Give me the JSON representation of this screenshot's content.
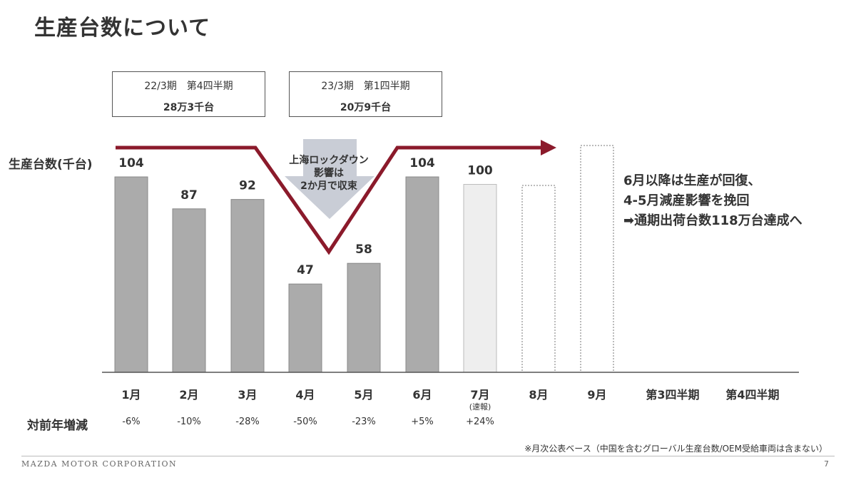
{
  "title": "生産台数について",
  "boxes": [
    {
      "line1": "22/3期　第4四半期",
      "line2": "28万3千台"
    },
    {
      "line1": "23/3期　第1四半期",
      "line2": "20万9千台"
    }
  ],
  "annotation": {
    "line1": "上海ロックダウン",
    "line2": "影響は",
    "line3": "2か月で収束"
  },
  "side_note": {
    "line1": "6月以降は生産が回復、",
    "line2": "4-5月減産影響を挽回",
    "line3": "➡通期出荷台数118万台達成へ"
  },
  "yoy_label": "対前年増減",
  "footnote": "※月次公表ベース（中国を含むグローバル生産台数/OEM受給車両は含まない）",
  "footer": {
    "company": "MAZDA MOTOR CORPORATION",
    "page": "7"
  },
  "colors": {
    "actual_bar": "#ababab",
    "flash_bar": "#eeeeee",
    "arrow": "#8b1a2b",
    "down_arrow": "#c9cdd6",
    "text": "#333333"
  },
  "chart_data": {
    "type": "bar",
    "ylabel": "生産台数(千台)",
    "categories": [
      "1月",
      "2月",
      "3月",
      "4月",
      "5月",
      "6月",
      "7月",
      "8月",
      "9月",
      "第3四半期",
      "第4四半期"
    ],
    "category_sub": [
      "",
      "",
      "",
      "",
      "",
      "",
      "(速報)",
      "",
      "",
      "",
      ""
    ],
    "values": [
      104,
      87,
      92,
      47,
      58,
      104,
      100,
      null,
      null,
      null,
      null
    ],
    "value_labels": [
      "104",
      "87",
      "92",
      "47",
      "58",
      "104",
      "100",
      "",
      "",
      "",
      ""
    ],
    "bar_status": [
      "actual",
      "actual",
      "actual",
      "actual",
      "actual",
      "actual",
      "flash",
      "plan",
      "plan",
      "none",
      "none"
    ],
    "yoy": [
      "-6%",
      "-10%",
      "-28%",
      "-50%",
      "-23%",
      "+5%",
      "+24%",
      "",
      "",
      "",
      ""
    ],
    "ylim": [
      0,
      120
    ],
    "grid": false,
    "legend": "none"
  }
}
